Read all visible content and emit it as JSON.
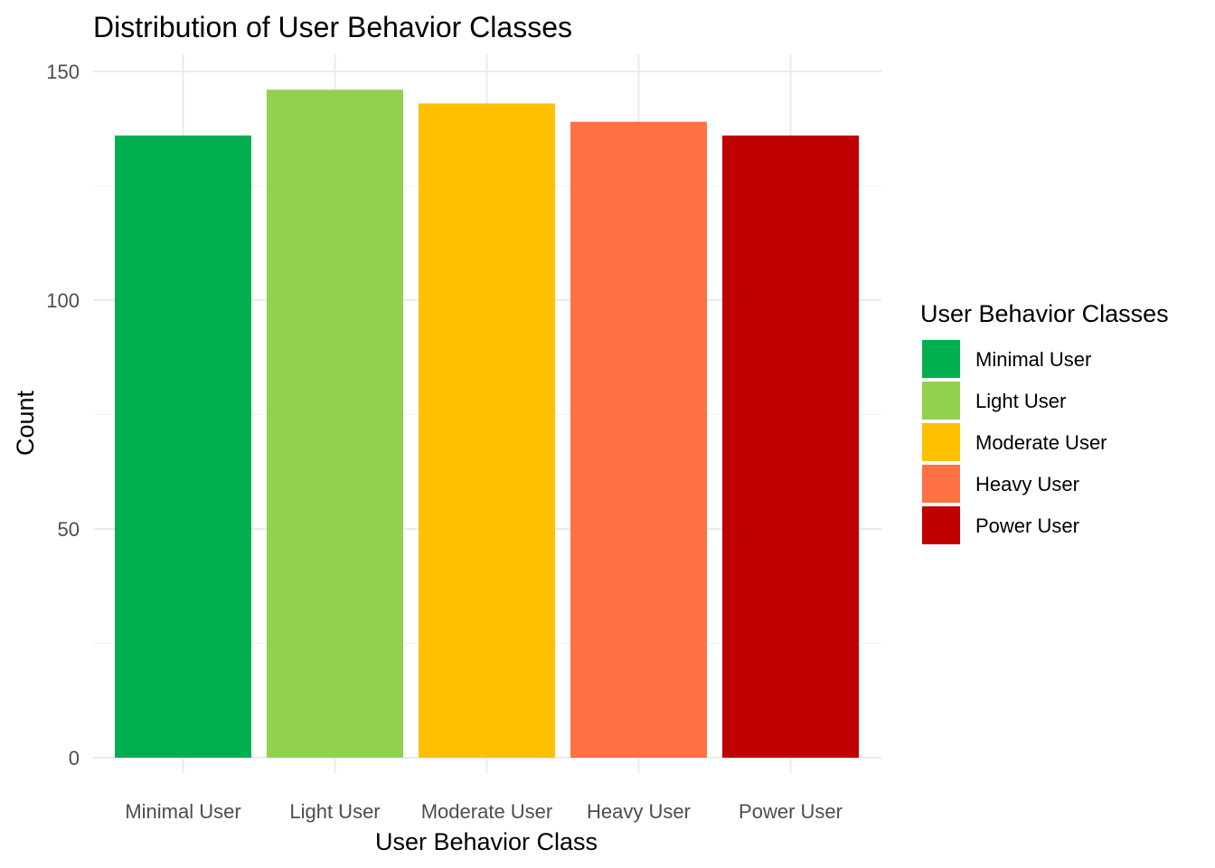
{
  "chart_data": {
    "type": "bar",
    "title": "Distribution of User Behavior Classes",
    "xlabel": "User Behavior Class",
    "ylabel": "Count",
    "categories": [
      "Minimal User",
      "Light User",
      "Moderate User",
      "Heavy User",
      "Power User"
    ],
    "values": [
      136,
      146,
      143,
      139,
      136
    ],
    "colors": [
      "#00B050",
      "#92D050",
      "#FFC000",
      "#FF7043",
      "#C00000"
    ],
    "ylim": [
      0,
      150
    ],
    "yticks": [
      0,
      50,
      100,
      150
    ],
    "grid": true,
    "legend": {
      "title": "User Behavior Classes",
      "position": "right",
      "entries": [
        "Minimal User",
        "Light User",
        "Moderate User",
        "Heavy User",
        "Power User"
      ]
    }
  }
}
